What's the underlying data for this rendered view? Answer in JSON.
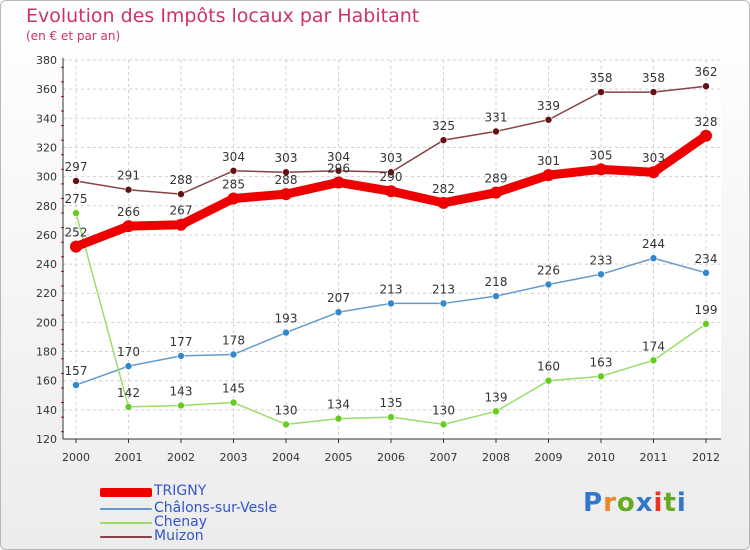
{
  "title": "Evolution des Impôts locaux par Habitant",
  "subtitle": "(en € et par an)",
  "brand": "Proxiti",
  "colors": {
    "title": "#cc3366",
    "axis": "#333333",
    "grid": "#d0d0d0",
    "tick_red": "#cc0000"
  },
  "chart_data": {
    "type": "line",
    "title": "Evolution des Impôts locaux par Habitant",
    "subtitle": "(en € et par an)",
    "xlabel": "",
    "ylabel": "",
    "ylim": [
      120,
      380
    ],
    "yticks": [
      120,
      140,
      160,
      180,
      200,
      220,
      240,
      260,
      280,
      300,
      320,
      340,
      360,
      380
    ],
    "categories": [
      "2000",
      "2001",
      "2002",
      "2003",
      "2004",
      "2005",
      "2006",
      "2007",
      "2008",
      "2009",
      "2010",
      "2011",
      "2012"
    ],
    "grid": true,
    "legend_position": "bottom-left",
    "series": [
      {
        "name": "TRIGNY",
        "values": [
          252,
          266,
          267,
          285,
          288,
          296,
          290,
          282,
          289,
          301,
          305,
          303,
          328
        ],
        "color": "#ee0000",
        "line_color": "#ee0000",
        "width": 9,
        "marker": 6
      },
      {
        "name": "Châlons-sur-Vesle",
        "values": [
          157,
          170,
          177,
          178,
          193,
          207,
          213,
          213,
          218,
          226,
          233,
          244,
          234
        ],
        "color": "#3388cc",
        "line_color": "#6699cc",
        "width": 1.5,
        "marker": 3.5
      },
      {
        "name": "Chenay",
        "values": [
          275,
          142,
          143,
          145,
          130,
          134,
          135,
          130,
          139,
          160,
          163,
          174,
          199
        ],
        "color": "#66cc22",
        "line_color": "#99dd66",
        "width": 1.5,
        "marker": 3.5
      },
      {
        "name": "Muizon",
        "values": [
          297,
          291,
          288,
          304,
          303,
          304,
          303,
          325,
          331,
          339,
          358,
          358,
          362
        ],
        "color": "#661111",
        "line_color": "#884444",
        "width": 1.5,
        "marker": 3.5
      }
    ]
  }
}
